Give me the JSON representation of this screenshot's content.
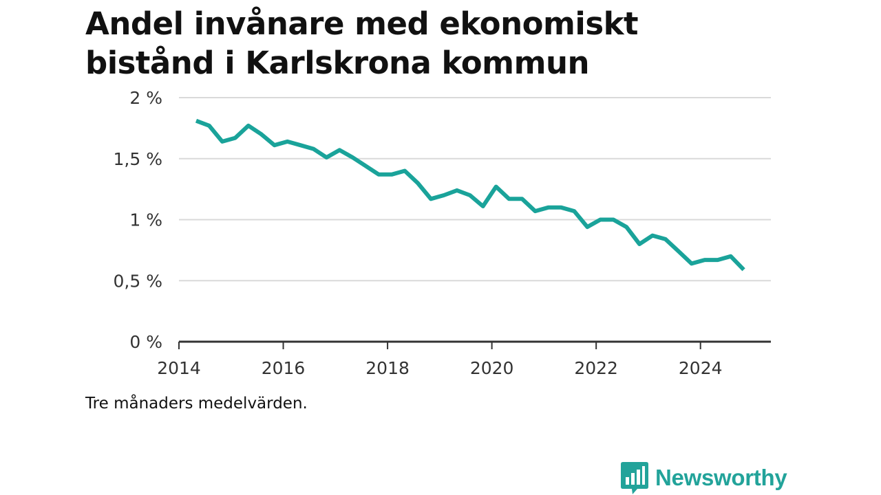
{
  "title_lines": [
    "Andel invånare med ekonomiskt",
    "bistånd i Karlskrona kommun"
  ],
  "note": "Tre månaders medelvärden.",
  "logo": {
    "text": "Newsworthy",
    "icon": "newsworthy-bar-chart-icon"
  },
  "colors": {
    "line": "#1aa39a",
    "grid": "#d9d9d9",
    "axis": "#333333",
    "brand": "#22a39a"
  },
  "chart_data": {
    "type": "line",
    "title": "Andel invånare med ekonomiskt bistånd i Karlskrona kommun",
    "xlabel": "",
    "ylabel": "",
    "xlim": [
      2014,
      2025.35
    ],
    "ylim": [
      0,
      2
    ],
    "x_ticks": [
      2014,
      2016,
      2018,
      2020,
      2022,
      2024
    ],
    "x_tick_labels": [
      "2014",
      "2016",
      "2018",
      "2020",
      "2022",
      "2024"
    ],
    "y_ticks": [
      0,
      0.5,
      1,
      1.5,
      2
    ],
    "y_tick_labels": [
      "0 %",
      "0,5 %",
      "1 %",
      "1,5 %",
      "2 %"
    ],
    "grid": true,
    "series": [
      {
        "x": [
          2014.33,
          2014.58,
          2014.83,
          2015.08,
          2015.33,
          2015.58,
          2015.83,
          2016.08,
          2016.33,
          2016.58,
          2016.83,
          2017.08,
          2017.33,
          2017.58,
          2017.83,
          2018.08,
          2018.33,
          2018.58,
          2018.83,
          2019.08,
          2019.33,
          2019.58,
          2019.83,
          2020.08,
          2020.33,
          2020.58,
          2020.83,
          2021.08,
          2021.33,
          2021.58,
          2021.83,
          2022.08,
          2022.33,
          2022.58,
          2022.83,
          2023.08,
          2023.33,
          2023.58,
          2023.83,
          2024.08,
          2024.33,
          2024.58,
          2024.83
        ],
        "values": [
          1.81,
          1.77,
          1.64,
          1.67,
          1.77,
          1.7,
          1.61,
          1.64,
          1.61,
          1.58,
          1.51,
          1.57,
          1.51,
          1.44,
          1.37,
          1.37,
          1.4,
          1.3,
          1.17,
          1.2,
          1.24,
          1.2,
          1.11,
          1.27,
          1.17,
          1.17,
          1.07,
          1.1,
          1.1,
          1.07,
          0.94,
          1.0,
          1.0,
          0.94,
          0.8,
          0.87,
          0.84,
          0.74,
          0.64,
          0.67,
          0.67,
          0.7,
          0.59
        ]
      }
    ]
  }
}
